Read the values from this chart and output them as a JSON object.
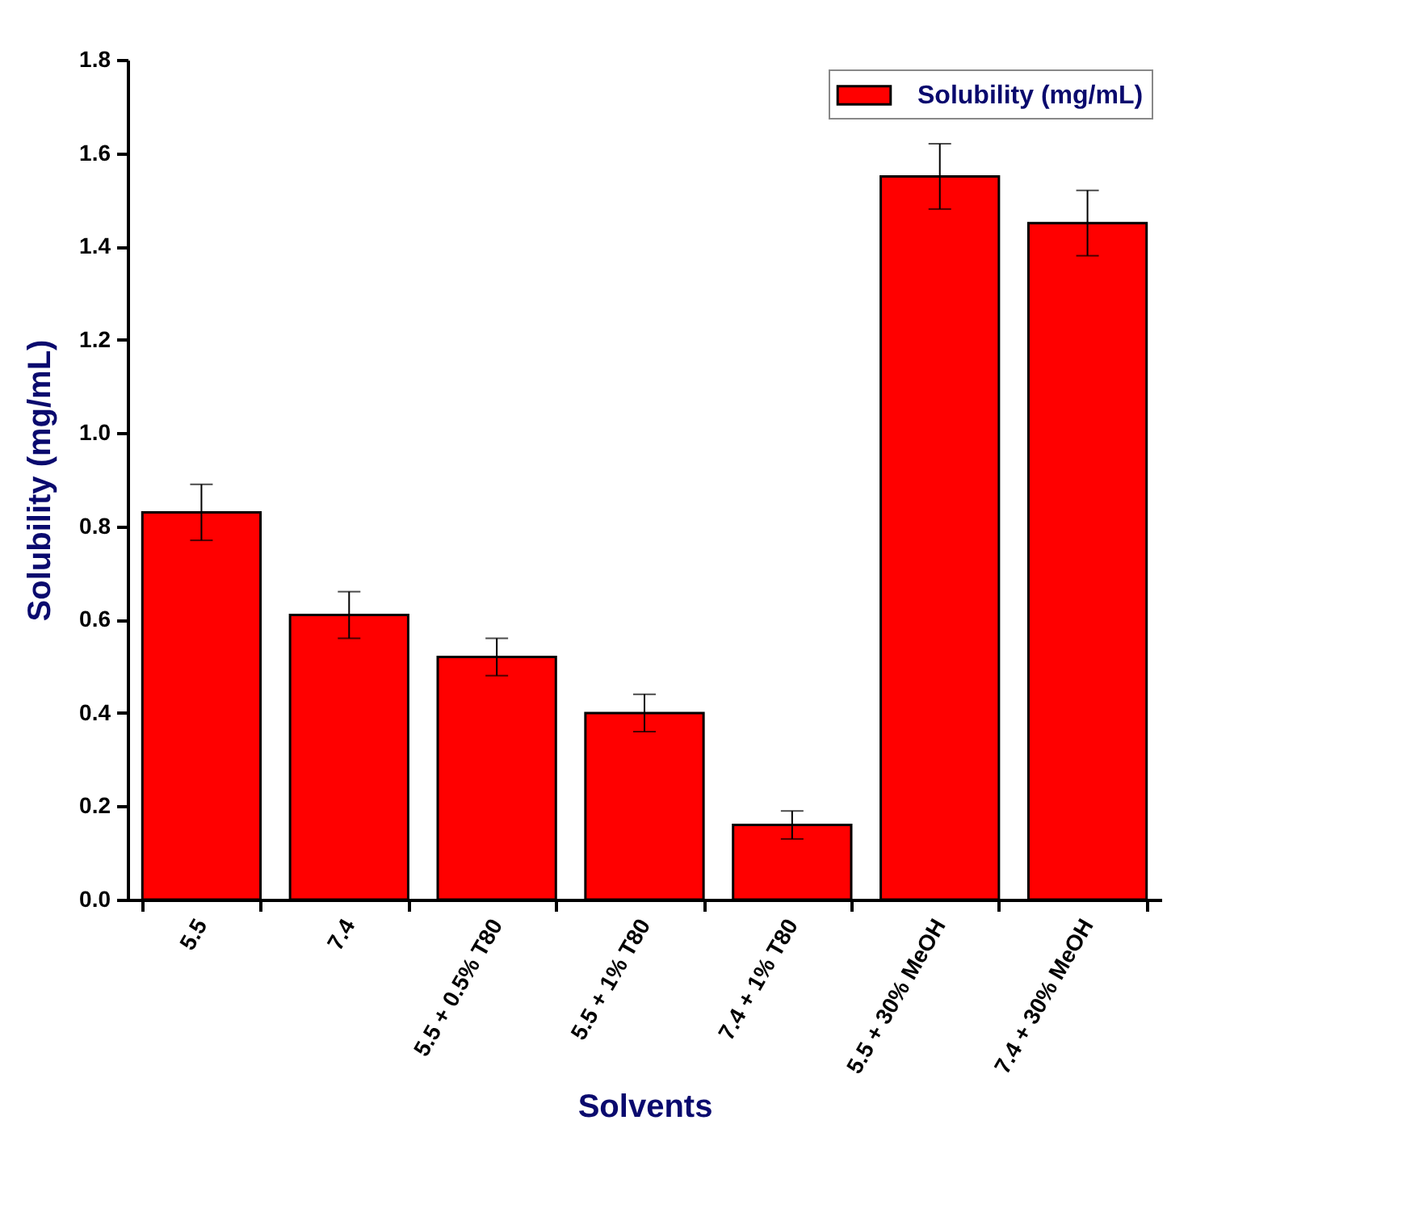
{
  "chart_data": {
    "type": "bar",
    "xlabel": "Solvents",
    "ylabel": "Solubility (mg/mL)",
    "categories": [
      "5.5",
      "7.4",
      "5.5 + 0.5% T80",
      "5.5 + 1% T80",
      "7.4 + 1% T80",
      "5.5 + 30% MeOH",
      "7.4 + 30% MeOH"
    ],
    "series": [
      {
        "name": "Solubility (mg/mL)",
        "color": "#ff0000",
        "values": [
          0.83,
          0.61,
          0.52,
          0.4,
          0.16,
          1.55,
          1.45
        ],
        "errors": [
          0.06,
          0.05,
          0.04,
          0.04,
          0.03,
          0.07,
          0.07
        ]
      }
    ],
    "ylim": [
      0,
      1.8
    ],
    "yticks": [
      {
        "value": 0,
        "label": "0.0"
      },
      0.2,
      0.4,
      0.6,
      0.8,
      {
        "value": 1,
        "label": "1.0"
      },
      1.2,
      1.4,
      1.6,
      1.8
    ],
    "grid": false,
    "legend": "top right"
  }
}
